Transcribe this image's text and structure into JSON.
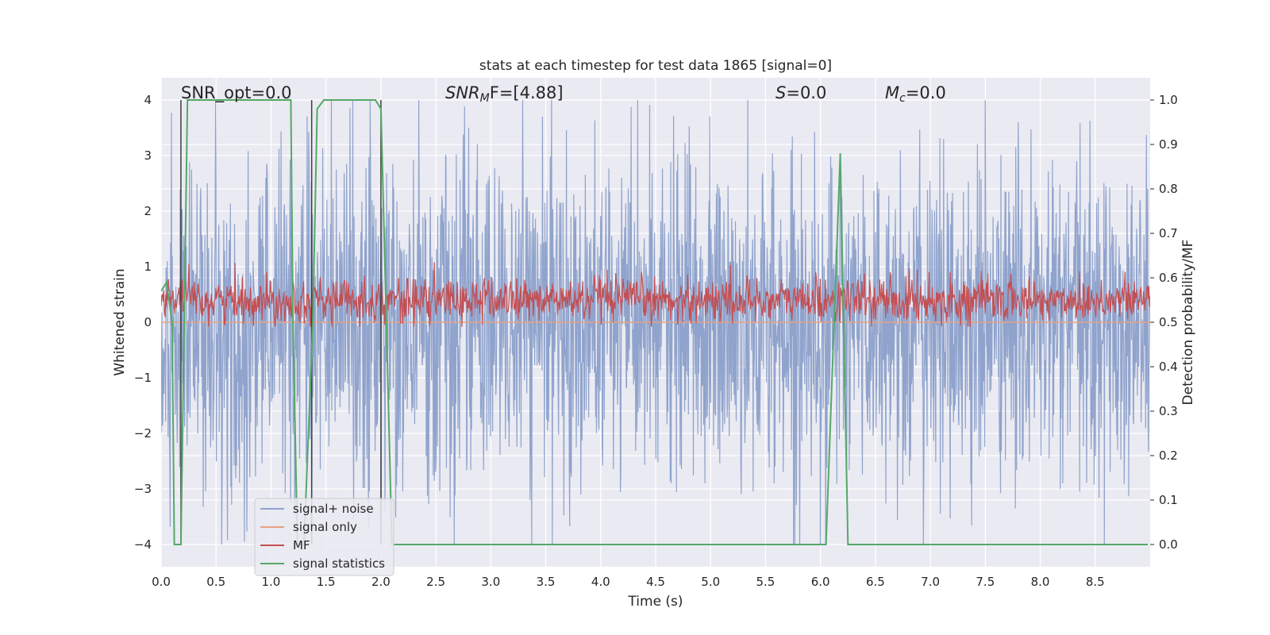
{
  "chart_data": {
    "type": "line",
    "title": "stats at each timestep for test data 1865 [signal=0]",
    "xlabel": "Time (s)",
    "ylabel_left": "Whitened strain",
    "ylabel_right": "Detection probability/MF",
    "xlim": [
      0.0,
      9.0
    ],
    "ylim_left": [
      -4.4,
      4.4
    ],
    "ylim_right": [
      -0.05,
      1.05
    ],
    "x_ticks": [
      "0.0",
      "0.5",
      "1.0",
      "1.5",
      "2.0",
      "2.5",
      "3.0",
      "3.5",
      "4.0",
      "4.5",
      "5.0",
      "5.5",
      "6.0",
      "6.5",
      "7.0",
      "7.5",
      "8.0",
      "8.5"
    ],
    "y_ticks_left": [
      "−4",
      "−3",
      "−2",
      "−1",
      "0",
      "1",
      "2",
      "3",
      "4"
    ],
    "y_ticks_right": [
      "0.0",
      "0.1",
      "0.2",
      "0.3",
      "0.4",
      "0.5",
      "0.6",
      "0.7",
      "0.8",
      "0.9",
      "1.0"
    ],
    "grid": true,
    "legend_position": "lower-left",
    "annotations": {
      "snr_opt": "SNR_opt=0.0",
      "snr_mf_main": "SNR",
      "snr_mf_sub": "M",
      "snr_mf_rest": "F=[4.88]",
      "s_main": "S",
      "s_rest": "=0.0",
      "mc_main": "M",
      "mc_sub": "c",
      "mc_rest": "=0.0"
    },
    "series": [
      {
        "name": "signal+ noise",
        "axis": "left",
        "color": "#8fa3cc",
        "description_values": "white noise, approx range -3.8 to 4.0, symmetric around 0",
        "amplitude_envelope": 1.6,
        "peak_abs": 4.0
      },
      {
        "name": "signal only",
        "axis": "left",
        "color": "#e6a283",
        "values_constant": 0.0
      },
      {
        "name": "MF",
        "axis": "right",
        "color": "#c44e52",
        "typical_range": [
          0.5,
          0.6
        ],
        "peak": 0.64
      },
      {
        "name": "signal statistics",
        "axis": "right",
        "color": "#55a868",
        "x": [
          0.0,
          0.05,
          0.1,
          0.12,
          0.18,
          0.24,
          0.28,
          1.18,
          1.2,
          1.24,
          1.3,
          1.38,
          1.42,
          1.48,
          1.95,
          2.0,
          2.05,
          2.1,
          6.05,
          6.18,
          6.25,
          8.98
        ],
        "y": [
          0.57,
          0.59,
          0.5,
          0.0,
          0.0,
          1.0,
          1.0,
          1.0,
          0.5,
          0.0,
          0.0,
          0.5,
          0.98,
          1.0,
          1.0,
          0.98,
          0.5,
          0.0,
          0.0,
          0.88,
          0.0,
          0.0
        ]
      }
    ],
    "vertical_markers": {
      "color": "#404040",
      "x": [
        0.18,
        1.37,
        2.0
      ]
    }
  }
}
